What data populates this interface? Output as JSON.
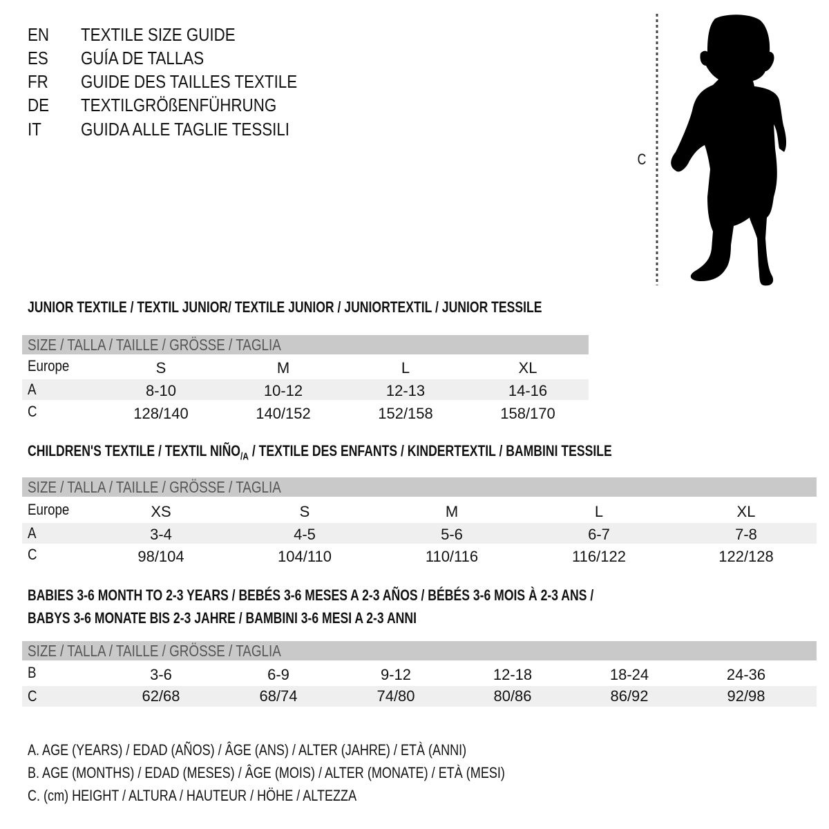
{
  "header": {
    "languages": [
      {
        "code": "EN",
        "title": "TEXTILE SIZE GUIDE"
      },
      {
        "code": "ES",
        "title": "GUÍA DE TALLAS"
      },
      {
        "code": "FR",
        "title": "GUIDE DES TAILLES TEXTILE"
      },
      {
        "code": "DE",
        "title": "TEXTILGRÖßENFÜHRUNG"
      },
      {
        "code": "IT",
        "title": "GUIDA ALLE TAGLIE TESSILI"
      }
    ]
  },
  "figure": {
    "measure_label": "C",
    "icon": "child-silhouette"
  },
  "colors": {
    "header_bar": "#c9c9c9",
    "shaded_row": "#efefef"
  },
  "tables": [
    {
      "title": "JUNIOR TEXTILE / TEXTIL JUNIOR/ TEXTILE JUNIOR / JUNIORTEXTIL / JUNIOR TESSILE",
      "header": "SIZE / TALLA / TAILLE / GRÖSSE / TAGLIA",
      "rows": [
        {
          "label": "Europe",
          "values": [
            "S",
            "M",
            "L",
            "XL"
          ]
        },
        {
          "label": "A",
          "values": [
            "8-10",
            "10-12",
            "12-13",
            "14-16"
          ]
        },
        {
          "label": "C",
          "values": [
            "128/140",
            "140/152",
            "152/158",
            "158/170"
          ]
        }
      ]
    },
    {
      "title": "CHILDREN'S TEXTILE / TEXTIL NIÑO",
      "title_sub": "/A",
      "title_rest": " / TEXTILE DES ENFANTS / KINDERTEXTIL / BAMBINI TESSILE",
      "header": "SIZE / TALLA / TAILLE / GRÖSSE / TAGLIA",
      "rows": [
        {
          "label": "Europe",
          "values": [
            "XS",
            "S",
            "M",
            "L",
            "XL"
          ]
        },
        {
          "label": "A",
          "values": [
            "3-4",
            "4-5",
            "5-6",
            "6-7",
            "7-8"
          ]
        },
        {
          "label": "C",
          "values": [
            "98/104",
            "104/110",
            "110/116",
            "116/122",
            "122/128"
          ]
        }
      ]
    },
    {
      "title": "BABIES 3-6 MONTH TO 2-3 YEARS / BEBÉS 3-6 MESES A 2-3 AÑOS / BÉBÉS 3-6 MOIS À 2-3 ANS /",
      "title_line2": "BABYS 3-6 MONATE BIS 2-3 JAHRE / BAMBINI 3-6 MESI A 2-3 ANNI",
      "header": "SIZE / TALLA / TAILLE / GRÖSSE / TAGLIA",
      "rows": [
        {
          "label": "B",
          "values": [
            "3-6",
            "6-9",
            "9-12",
            "12-18",
            "18-24",
            "24-36"
          ]
        },
        {
          "label": "C",
          "values": [
            "62/68",
            "68/74",
            "74/80",
            "80/86",
            "86/92",
            "92/98"
          ]
        }
      ]
    }
  ],
  "legend": [
    "A. AGE (YEARS) / EDAD (AÑOS) / ÂGE (ANS) / ALTER (JAHRE) / ETÀ (ANNI)",
    "B. AGE (MONTHS) / EDAD (MESES) / ÂGE (MOIS) / ALTER (MONATE) / ETÀ (MESI)",
    "C. (cm) HEIGHT / ALTURA / HAUTEUR / HÖHE / ALTEZZA"
  ]
}
